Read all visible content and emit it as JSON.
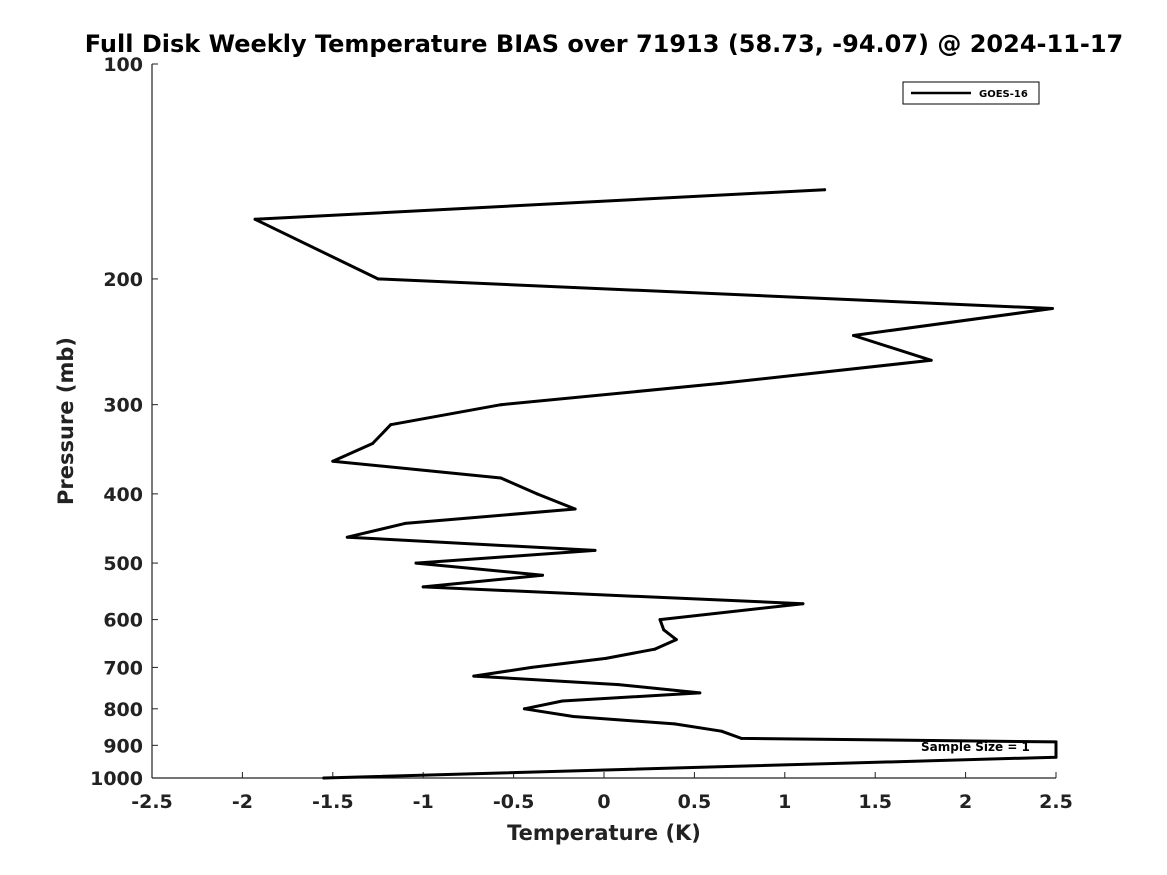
{
  "chart_data": {
    "type": "line",
    "title": "Full Disk Weekly Temperature BIAS over 71913 (58.73, -94.07) @ 2024-11-17",
    "xlabel": "Temperature (K)",
    "ylabel": "Pressure (mb)",
    "xlim": [
      -2.5,
      2.5
    ],
    "ylim": [
      100,
      1000
    ],
    "yscale": "log",
    "y_reversed": true,
    "grid": false,
    "legend_position": "top-right",
    "xticks": [
      -2.5,
      -2,
      -1.5,
      -1,
      -0.5,
      0,
      0.5,
      1,
      1.5,
      2,
      2.5
    ],
    "xtick_labels": [
      "-2.5",
      "-2",
      "-1.5",
      "-1",
      "-0.5",
      "0",
      "0.5",
      "1",
      "1.5",
      "2",
      "2.5"
    ],
    "yticks": [
      100,
      200,
      300,
      400,
      500,
      600,
      700,
      800,
      900,
      1000
    ],
    "ytick_labels": [
      "100",
      "200",
      "300",
      "400",
      "500",
      "600",
      "700",
      "800",
      "900",
      "1000"
    ],
    "series": [
      {
        "name": "GOES-16",
        "color": "#000000",
        "points": [
          {
            "t": 1.22,
            "p": 150
          },
          {
            "t": -1.93,
            "p": 165
          },
          {
            "t": -1.25,
            "p": 200
          },
          {
            "t": 2.48,
            "p": 220
          },
          {
            "t": 1.38,
            "p": 240
          },
          {
            "t": 1.81,
            "p": 260
          },
          {
            "t": 0.65,
            "p": 280
          },
          {
            "t": -0.57,
            "p": 300
          },
          {
            "t": -1.18,
            "p": 320
          },
          {
            "t": -1.28,
            "p": 340
          },
          {
            "t": -1.5,
            "p": 360
          },
          {
            "t": -0.57,
            "p": 380
          },
          {
            "t": -0.37,
            "p": 400
          },
          {
            "t": -0.16,
            "p": 420
          },
          {
            "t": -1.1,
            "p": 440
          },
          {
            "t": -1.42,
            "p": 460
          },
          {
            "t": -0.05,
            "p": 480
          },
          {
            "t": -1.04,
            "p": 500
          },
          {
            "t": -0.34,
            "p": 520
          },
          {
            "t": -1.0,
            "p": 540
          },
          {
            "t": 1.1,
            "p": 570
          },
          {
            "t": 0.31,
            "p": 600
          },
          {
            "t": 0.33,
            "p": 620
          },
          {
            "t": 0.4,
            "p": 640
          },
          {
            "t": 0.28,
            "p": 660
          },
          {
            "t": 0.01,
            "p": 680
          },
          {
            "t": -0.4,
            "p": 700
          },
          {
            "t": -0.72,
            "p": 720
          },
          {
            "t": 0.08,
            "p": 740
          },
          {
            "t": 0.53,
            "p": 760
          },
          {
            "t": -0.23,
            "p": 780
          },
          {
            "t": -0.44,
            "p": 800
          },
          {
            "t": -0.17,
            "p": 820
          },
          {
            "t": 0.39,
            "p": 840
          },
          {
            "t": 0.65,
            "p": 860
          },
          {
            "t": 0.76,
            "p": 880
          },
          {
            "t": 2.5,
            "p": 890
          },
          {
            "t": 2.5,
            "p": 935
          },
          {
            "t": -1.55,
            "p": 1000
          }
        ]
      }
    ],
    "annotation": "Sample Size = 1"
  }
}
